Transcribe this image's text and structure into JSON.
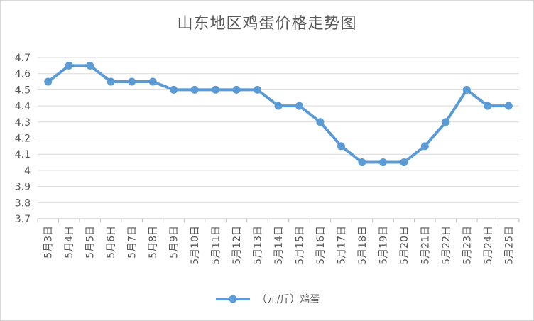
{
  "chart_data": {
    "type": "line",
    "title": "山东地区鸡蛋价格走势图",
    "categories": [
      "5月3日",
      "5月4日",
      "5月5日",
      "5月6日",
      "5月7日",
      "5月8日",
      "5月9日",
      "5月10日",
      "5月11日",
      "5月12日",
      "5月13日",
      "5月14日",
      "5月15日",
      "5月16日",
      "5月17日",
      "5月18日",
      "5月19日",
      "5月20日",
      "5月21日",
      "5月22日",
      "5月23日",
      "5月24日",
      "5月25日"
    ],
    "series": [
      {
        "name": "（元/斤）鸡蛋",
        "values": [
          4.55,
          4.65,
          4.65,
          4.55,
          4.55,
          4.55,
          4.5,
          4.5,
          4.5,
          4.5,
          4.5,
          4.4,
          4.4,
          4.3,
          4.15,
          4.05,
          4.05,
          4.05,
          4.15,
          4.3,
          4.5,
          4.4,
          4.4
        ]
      }
    ],
    "ylim": [
      3.7,
      4.7
    ],
    "yticks": [
      "3.7",
      "3.8",
      "3.9",
      "4",
      "4.1",
      "4.2",
      "4.3",
      "4.4",
      "4.5",
      "4.6",
      "4.7"
    ],
    "grid": true,
    "legend_position": "bottom",
    "line_color": "#5b9bd5",
    "grid_color": "#d9d9d9",
    "axis_text_color": "#595959"
  }
}
